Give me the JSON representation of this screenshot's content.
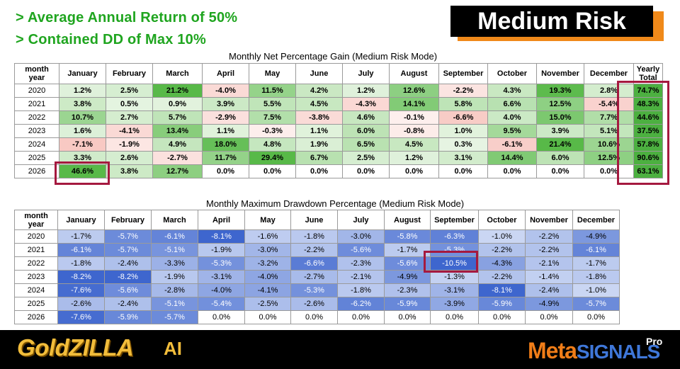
{
  "headlines": {
    "line1": "> Average Annual Return of 50%",
    "line2": "> Contained DD of Max 10%"
  },
  "badge": {
    "label": "Medium Risk",
    "color": "#000000",
    "shadow_color": "#f0891a"
  },
  "gain_table": {
    "title": "Monthly Net Percentage Gain (Medium Risk Mode)",
    "corner_label_line1": "month",
    "corner_label_line2": "year",
    "months": [
      "January",
      "February",
      "March",
      "April",
      "May",
      "June",
      "July",
      "August",
      "September",
      "October",
      "November",
      "December"
    ],
    "total_label_line1": "Yearly",
    "total_label_line2": "Total",
    "rows": [
      {
        "year": "2020",
        "values": [
          "1.2%",
          "2.5%",
          "21.2%",
          "-4.0%",
          "11.5%",
          "4.2%",
          "1.2%",
          "12.6%",
          "-2.2%",
          "4.3%",
          "19.3%",
          "2.8%"
        ],
        "total": "74.7%"
      },
      {
        "year": "2021",
        "values": [
          "3.8%",
          "0.5%",
          "0.9%",
          "3.9%",
          "5.5%",
          "4.5%",
          "-4.3%",
          "14.1%",
          "5.8%",
          "6.6%",
          "12.5%",
          "-5.4%"
        ],
        "total": "48.3%"
      },
      {
        "year": "2022",
        "values": [
          "10.7%",
          "2.7%",
          "5.7%",
          "-2.9%",
          "7.5%",
          "-3.8%",
          "4.6%",
          "-0.1%",
          "-6.6%",
          "4.0%",
          "15.0%",
          "7.7%"
        ],
        "total": "44.6%"
      },
      {
        "year": "2023",
        "values": [
          "1.6%",
          "-4.1%",
          "13.4%",
          "1.1%",
          "-0.3%",
          "1.1%",
          "6.0%",
          "-0.8%",
          "1.0%",
          "9.5%",
          "3.9%",
          "5.1%"
        ],
        "total": "37.5%"
      },
      {
        "year": "2024",
        "values": [
          "-7.1%",
          "-1.9%",
          "4.9%",
          "18.0%",
          "4.8%",
          "1.9%",
          "6.5%",
          "4.5%",
          "0.3%",
          "-6.1%",
          "21.4%",
          "10.6%"
        ],
        "total": "57.8%"
      },
      {
        "year": "2025",
        "values": [
          "3.3%",
          "2.6%",
          "-2.7%",
          "11.7%",
          "29.4%",
          "6.7%",
          "2.5%",
          "1.2%",
          "3.1%",
          "14.4%",
          "6.0%",
          "12.5%"
        ],
        "total": "90.6%"
      },
      {
        "year": "2026",
        "values": [
          "46.6%",
          "3.8%",
          "12.7%",
          "0.0%",
          "0.0%",
          "0.0%",
          "0.0%",
          "0.0%",
          "0.0%",
          "0.0%",
          "0.0%",
          "0.0%"
        ],
        "total": "63.1%"
      }
    ],
    "highlight_color": "#a5193f"
  },
  "drawdown_table": {
    "title": "Monthly Maximum Drawdown Percentage (Medium Risk Mode)",
    "corner_label_line1": "month",
    "corner_label_line2": "year",
    "months": [
      "January",
      "February",
      "March",
      "April",
      "May",
      "June",
      "July",
      "August",
      "September",
      "October",
      "November",
      "December"
    ],
    "rows": [
      {
        "year": "2020",
        "values": [
          "-1.7%",
          "-5.7%",
          "-6.1%",
          "-8.1%",
          "-1.6%",
          "-1.8%",
          "-3.0%",
          "-5.8%",
          "-6.3%",
          "-1.0%",
          "-2.2%",
          "-4.9%"
        ]
      },
      {
        "year": "2021",
        "values": [
          "-6.1%",
          "-5.7%",
          "-5.1%",
          "-1.9%",
          "-3.0%",
          "-2.2%",
          "-5.6%",
          "-1.7%",
          "-5.3%",
          "-2.2%",
          "-2.2%",
          "-6.1%"
        ]
      },
      {
        "year": "2022",
        "values": [
          "-1.8%",
          "-2.4%",
          "-3.3%",
          "-5.3%",
          "-3.2%",
          "-6.6%",
          "-2.3%",
          "-5.6%",
          "-10.5%",
          "-4.3%",
          "-2.1%",
          "-1.7%"
        ]
      },
      {
        "year": "2023",
        "values": [
          "-8.2%",
          "-8.2%",
          "-1.9%",
          "-3.1%",
          "-4.0%",
          "-2.7%",
          "-2.1%",
          "-4.9%",
          "-1.3%",
          "-2.2%",
          "-1.4%",
          "-1.8%"
        ]
      },
      {
        "year": "2024",
        "values": [
          "-7.6%",
          "-5.6%",
          "-2.8%",
          "-4.0%",
          "-4.1%",
          "-5.3%",
          "-1.8%",
          "-2.3%",
          "-3.1%",
          "-8.1%",
          "-2.4%",
          "-1.0%"
        ]
      },
      {
        "year": "2025",
        "values": [
          "-2.6%",
          "-2.4%",
          "-5.1%",
          "-5.4%",
          "-2.5%",
          "-2.6%",
          "-6.2%",
          "-5.9%",
          "-3.9%",
          "-5.9%",
          "-4.9%",
          "-5.7%"
        ]
      },
      {
        "year": "2026",
        "values": [
          "-7.6%",
          "-5.9%",
          "-5.7%",
          "0.0%",
          "0.0%",
          "0.0%",
          "0.0%",
          "0.0%",
          "0.0%",
          "0.0%",
          "0.0%",
          "0.0%"
        ]
      }
    ]
  },
  "footer": {
    "left_logo_text": "GoldZILLA",
    "left_logo_suffix": "AI",
    "right_logo_meta": "Meta",
    "right_logo_signals": "SIGNALS",
    "right_logo_pro": "Pro",
    "gold_color": "#f2bd3b",
    "orange_color": "#f07d18",
    "blue_color": "#3f77d9"
  }
}
